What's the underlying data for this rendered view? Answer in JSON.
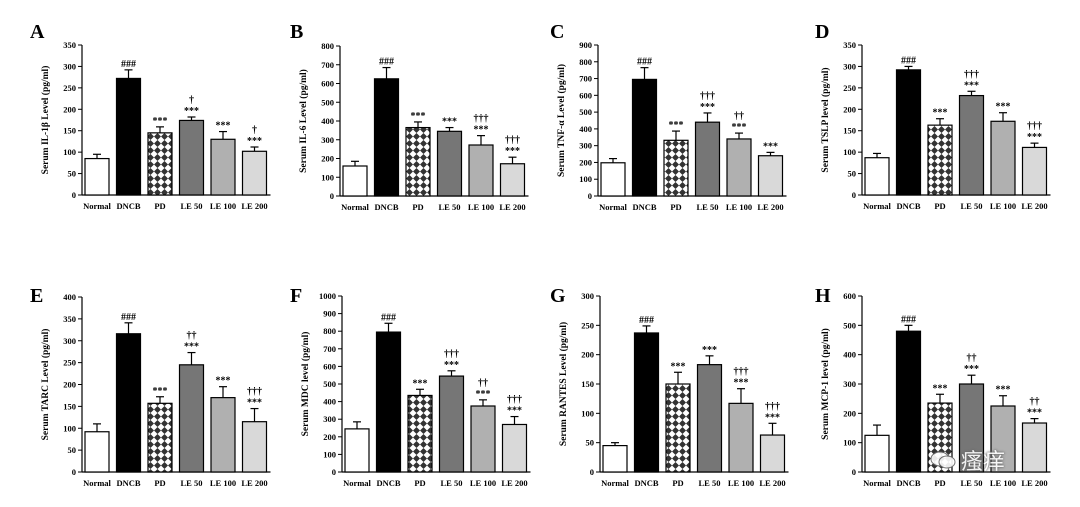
{
  "categories": [
    "Normal",
    "DNCB",
    "PD",
    "LE 50",
    "LE 100",
    "LE 200"
  ],
  "watermark": "瘙痒",
  "chart_data": [
    {
      "type": "bar",
      "letter": "A",
      "ylabel": "Serum IL-1β Level (pg/ml)",
      "ylim": [
        0,
        350
      ],
      "ticks": [
        0,
        50,
        100,
        150,
        200,
        250,
        300,
        350
      ],
      "values": [
        85,
        272,
        145,
        174,
        130,
        102
      ],
      "errors": [
        10,
        20,
        14,
        8,
        18,
        10
      ],
      "annotations": [
        [],
        [
          "###"
        ],
        [
          "***"
        ],
        [
          "†",
          "***"
        ],
        [
          "***"
        ],
        [
          "†",
          "***"
        ]
      ]
    },
    {
      "type": "bar",
      "letter": "B",
      "ylabel": "Serum IL-6 Level (pg/ml)",
      "ylim": [
        0,
        800
      ],
      "ticks": [
        0,
        100,
        200,
        300,
        400,
        500,
        600,
        700,
        800
      ],
      "values": [
        160,
        625,
        365,
        345,
        272,
        172
      ],
      "errors": [
        25,
        60,
        30,
        20,
        50,
        35
      ],
      "annotations": [
        [],
        [
          "###"
        ],
        [
          "***"
        ],
        [
          "***"
        ],
        [
          "†††",
          "***"
        ],
        [
          "†††",
          "***"
        ]
      ]
    },
    {
      "type": "bar",
      "letter": "C",
      "ylabel": "Serum TNF-α Level (pg/ml)",
      "ylim": [
        0,
        900
      ],
      "ticks": [
        0,
        100,
        200,
        300,
        400,
        500,
        600,
        700,
        800,
        900
      ],
      "values": [
        198,
        695,
        332,
        440,
        340,
        240
      ],
      "errors": [
        25,
        70,
        55,
        55,
        35,
        20
      ],
      "annotations": [
        [],
        [
          "###"
        ],
        [
          "***"
        ],
        [
          "†††",
          "***"
        ],
        [
          "††",
          "***"
        ],
        [
          "***"
        ]
      ]
    },
    {
      "type": "bar",
      "letter": "D",
      "ylabel": "Serum TSLP level (pg/ml)",
      "ylim": [
        0,
        350
      ],
      "ticks": [
        0,
        50,
        100,
        150,
        200,
        250,
        300,
        350
      ],
      "values": [
        87,
        292,
        163,
        232,
        172,
        111
      ],
      "errors": [
        10,
        8,
        15,
        10,
        20,
        10
      ],
      "annotations": [
        [],
        [
          "###"
        ],
        [
          "***"
        ],
        [
          "†††",
          "***"
        ],
        [
          "***"
        ],
        [
          "†††",
          "***"
        ]
      ]
    },
    {
      "type": "bar",
      "letter": "E",
      "ylabel": "Serum TARC Level (pg/ml)",
      "ylim": [
        0,
        400
      ],
      "ticks": [
        0,
        50,
        100,
        150,
        200,
        250,
        300,
        350,
        400
      ],
      "values": [
        92,
        316,
        157,
        245,
        170,
        115
      ],
      "errors": [
        18,
        25,
        15,
        28,
        25,
        30
      ],
      "annotations": [
        [],
        [
          "###"
        ],
        [
          "***"
        ],
        [
          "††",
          "***"
        ],
        [
          "***"
        ],
        [
          "†††",
          "***"
        ]
      ]
    },
    {
      "type": "bar",
      "letter": "F",
      "ylabel": "Serum MDC level (pg/ml)",
      "ylim": [
        0,
        1000
      ],
      "ticks": [
        0,
        100,
        200,
        300,
        400,
        500,
        600,
        700,
        800,
        900,
        1000
      ],
      "values": [
        245,
        795,
        435,
        545,
        375,
        270
      ],
      "errors": [
        40,
        50,
        35,
        30,
        35,
        45
      ],
      "annotations": [
        [],
        [
          "###"
        ],
        [
          "***"
        ],
        [
          "†††",
          "***"
        ],
        [
          "††",
          "***"
        ],
        [
          "†††",
          "***"
        ]
      ]
    },
    {
      "type": "bar",
      "letter": "G",
      "ylabel": "Serum RANTES Level (pg/ml)",
      "ylim": [
        0,
        300
      ],
      "ticks": [
        0,
        50,
        100,
        150,
        200,
        250,
        300
      ],
      "values": [
        45,
        237,
        150,
        183,
        117,
        63
      ],
      "errors": [
        5,
        12,
        20,
        15,
        25,
        20
      ],
      "annotations": [
        [],
        [
          "###"
        ],
        [
          "***"
        ],
        [
          "***"
        ],
        [
          "†††",
          "***"
        ],
        [
          "†††",
          "***"
        ]
      ]
    },
    {
      "type": "bar",
      "letter": "H",
      "ylabel": "Serum MCP-1 level (pg/ml)",
      "ylim": [
        0,
        600
      ],
      "ticks": [
        0,
        100,
        200,
        300,
        400,
        500,
        600
      ],
      "values": [
        125,
        480,
        235,
        300,
        225,
        167
      ],
      "errors": [
        35,
        20,
        30,
        30,
        35,
        15
      ],
      "annotations": [
        [],
        [
          "###"
        ],
        [
          "***"
        ],
        [
          "††",
          "***"
        ],
        [
          "***"
        ],
        [
          "††",
          "***"
        ]
      ]
    }
  ]
}
